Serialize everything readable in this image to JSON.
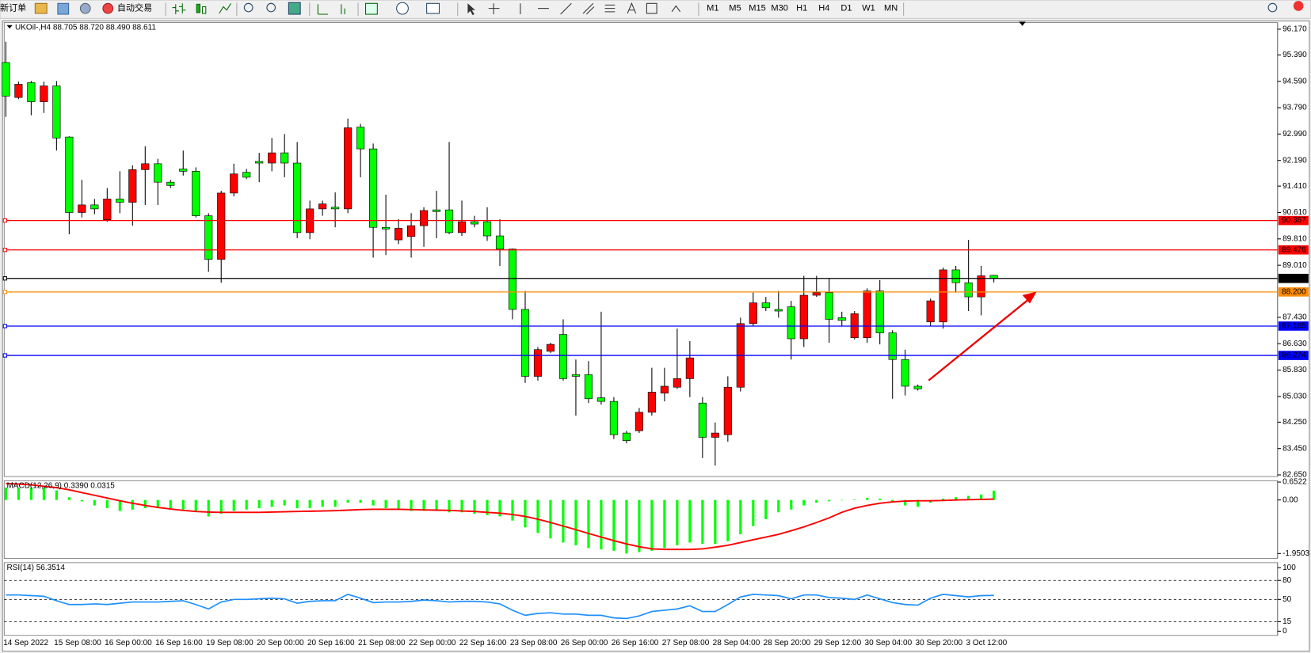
{
  "toolbar": {
    "new_order": "新订单",
    "auto_trading": "自动交易",
    "timeframes": [
      "M1",
      "M5",
      "M15",
      "M30",
      "H1",
      "H4",
      "D1",
      "W1",
      "MN"
    ]
  },
  "chart_data": [
    {
      "type": "candlestick",
      "title": "UKOil-,H4 88.705 88.720 88.490 88.611",
      "up_color": "#ff0000",
      "down_color": "#00ff00",
      "categories": [
        "14 Sep 2022",
        null,
        null,
        null,
        "15 Sep 08:00",
        null,
        null,
        null,
        "16 Sep 00:00",
        null,
        null,
        null,
        "16 Sep 16:00",
        null,
        null,
        null,
        "19 Sep 08:00",
        null,
        null,
        null,
        "20 Sep 00:00",
        null,
        null,
        null,
        "20 Sep 16:00",
        null,
        null,
        null,
        "21 Sep 08:00",
        null,
        null,
        null,
        "22 Sep 00:00",
        null,
        null,
        null,
        "22 Sep 16:00",
        null,
        null,
        null,
        "23 Sep 08:00",
        null,
        null,
        null,
        "26 Sep 00:00",
        null,
        null,
        null,
        "26 Sep 16:00",
        null,
        null,
        null,
        "27 Sep 08:00",
        null,
        null,
        null,
        "28 Sep 04:00",
        null,
        null,
        null,
        "28 Sep 20:00",
        null,
        null,
        null,
        "29 Sep 12:00",
        null,
        null,
        null,
        "30 Sep 04:00",
        null,
        null,
        null,
        "30 Sep 20:00",
        null,
        null,
        null,
        "3 Oct 12:00",
        null,
        null
      ],
      "open": [
        95.16,
        94.1,
        94.55,
        93.97,
        94.45,
        92.9,
        90.61,
        90.84,
        90.39,
        91.02,
        90.92,
        91.91,
        92.09,
        91.53,
        91.93,
        91.86,
        90.51,
        89.19,
        91.2,
        91.83,
        92.16,
        92.11,
        92.42,
        92.11,
        90.0,
        90.72,
        90.77,
        90.72,
        93.2,
        92.54,
        90.16,
        89.78,
        89.88,
        90.21,
        90.69,
        90.69,
        90.0,
        90.33,
        90.33,
        89.9,
        89.5,
        87.67,
        85.64,
        86.4,
        86.91,
        85.69,
        85.69,
        84.99,
        84.88,
        83.92,
        83.99,
        84.55,
        85.13,
        85.31,
        85.57,
        84.83,
        83.79,
        83.87,
        85.31,
        87.24,
        87.87,
        87.67,
        87.75,
        86.78,
        88.1,
        88.18,
        87.42,
        86.81,
        86.81,
        88.23,
        86.96,
        86.15,
        85.34,
        87.29,
        87.29,
        88.87,
        88.48,
        88.05,
        88.705
      ],
      "high": [
        95.79,
        94.58,
        94.6,
        94.58,
        94.6,
        92.92,
        91.6,
        91.02,
        91.35,
        91.86,
        92.04,
        92.62,
        92.24,
        91.6,
        92.49,
        91.98,
        90.59,
        91.27,
        92.09,
        91.93,
        92.42,
        92.87,
        92.99,
        92.75,
        90.97,
        90.97,
        91.22,
        93.46,
        93.3,
        92.7,
        91.15,
        90.41,
        90.59,
        90.77,
        91.27,
        92.75,
        90.97,
        90.51,
        90.77,
        90.41,
        89.52,
        88.23,
        86.53,
        86.66,
        87.37,
        86.15,
        86.1,
        87.6,
        85.01,
        83.99,
        84.68,
        85.9,
        85.9,
        87.09,
        86.71,
        85.01,
        84.24,
        85.64,
        87.42,
        88.18,
        88.05,
        88.23,
        87.93,
        88.69,
        88.69,
        88.61,
        87.6,
        87.62,
        88.31,
        88.56,
        87.04,
        86.45,
        85.39,
        88.0,
        88.94,
        88.99,
        89.78,
        88.99,
        88.72
      ],
      "low": [
        93.51,
        94.05,
        93.56,
        93.63,
        92.49,
        89.95,
        90.46,
        90.56,
        90.33,
        90.59,
        90.21,
        90.84,
        90.84,
        91.35,
        91.73,
        90.46,
        88.81,
        88.48,
        91.1,
        91.63,
        91.53,
        91.86,
        91.68,
        89.83,
        89.8,
        90.51,
        90.16,
        90.59,
        91.68,
        89.24,
        89.32,
        89.65,
        89.24,
        89.57,
        89.83,
        89.95,
        89.9,
        90.16,
        89.75,
        88.99,
        87.37,
        85.44,
        85.51,
        86.35,
        85.51,
        84.45,
        84.83,
        84.78,
        83.74,
        83.61,
        83.92,
        84.45,
        84.88,
        85.26,
        85.01,
        83.16,
        82.93,
        83.66,
        85.18,
        87.16,
        87.62,
        87.42,
        86.15,
        86.53,
        88.05,
        86.66,
        87.16,
        86.76,
        86.66,
        86.61,
        84.96,
        85.06,
        85.21,
        87.16,
        87.09,
        88.18,
        87.62,
        87.49,
        88.49
      ],
      "close": [
        94.14,
        94.5,
        93.97,
        94.45,
        92.87,
        90.61,
        90.84,
        90.72,
        91.02,
        90.92,
        91.91,
        92.09,
        91.53,
        91.43,
        91.86,
        90.51,
        89.19,
        91.2,
        91.78,
        91.68,
        92.11,
        92.42,
        92.11,
        90.0,
        90.72,
        90.87,
        90.72,
        93.18,
        92.54,
        90.16,
        90.11,
        90.13,
        90.21,
        90.67,
        90.64,
        90.0,
        90.33,
        90.26,
        89.9,
        89.5,
        87.67,
        85.64,
        86.45,
        86.61,
        85.57,
        85.64,
        84.96,
        84.88,
        83.87,
        83.69,
        84.55,
        85.16,
        85.34,
        85.57,
        86.2,
        83.79,
        83.92,
        85.31,
        87.24,
        87.87,
        87.72,
        87.62,
        86.78,
        88.1,
        88.18,
        87.37,
        87.34,
        87.54,
        88.23,
        86.96,
        86.15,
        85.34,
        85.26,
        87.93,
        88.87,
        88.48,
        88.05,
        88.69,
        88.611
      ],
      "ylim": [
        82.6,
        96.37
      ],
      "yticks": [
        {
          "value": 96.17,
          "label": "96.170"
        },
        {
          "value": 95.39,
          "label": "95.390"
        },
        {
          "value": 94.59,
          "label": "94.590"
        },
        {
          "value": 93.79,
          "label": "93.790"
        },
        {
          "value": 92.99,
          "label": "92.990"
        },
        {
          "value": 92.19,
          "label": "92.190"
        },
        {
          "value": 91.41,
          "label": "91.410"
        },
        {
          "value": 90.61,
          "label": "90.610"
        },
        {
          "value": 89.81,
          "label": "89.810"
        },
        {
          "value": 89.01,
          "label": "89.010"
        },
        {
          "value": 87.43,
          "label": "87.430"
        },
        {
          "value": 86.63,
          "label": "86.630"
        },
        {
          "value": 85.83,
          "label": "85.830"
        },
        {
          "value": 85.03,
          "label": "85.030"
        },
        {
          "value": 84.25,
          "label": "84.250"
        },
        {
          "value": 83.45,
          "label": "83.450"
        },
        {
          "value": 82.65,
          "label": "82.650"
        }
      ],
      "levels": [
        {
          "value": 90.367,
          "color": "#ff0000"
        },
        {
          "value": 89.476,
          "color": "#ff0000"
        },
        {
          "value": 88.611,
          "color": "#000000"
        },
        {
          "value": 88.2,
          "label": "88.200",
          "color": "#ff8c00"
        },
        {
          "value": 87.165,
          "color": "#0000ff"
        },
        {
          "value": 86.274,
          "color": "#0000ff"
        }
      ]
    },
    {
      "type": "macd",
      "title": "MACD(12,26,9) 0.3390 0.0315",
      "series": [
        {
          "type": "bar",
          "color": "#00ff00",
          "values": [
            0.45,
            0.45,
            0.45,
            0.45,
            0.35,
            0.1,
            -0.05,
            -0.2,
            -0.3,
            -0.4,
            -0.35,
            -0.3,
            -0.3,
            -0.3,
            -0.35,
            -0.4,
            -0.6,
            -0.5,
            -0.4,
            -0.35,
            -0.3,
            -0.25,
            -0.2,
            -0.3,
            -0.3,
            -0.25,
            -0.25,
            -0.1,
            -0.1,
            -0.2,
            -0.3,
            -0.35,
            -0.4,
            -0.4,
            -0.4,
            -0.45,
            -0.45,
            -0.5,
            -0.55,
            -0.6,
            -0.75,
            -1.0,
            -1.2,
            -1.4,
            -1.55,
            -1.65,
            -1.75,
            -1.8,
            -1.85,
            -1.95,
            -1.9,
            -1.85,
            -1.75,
            -1.65,
            -1.55,
            -1.6,
            -1.6,
            -1.5,
            -1.25,
            -0.95,
            -0.7,
            -0.45,
            -0.35,
            -0.2,
            -0.1,
            -0.05,
            0.0,
            0.02,
            0.08,
            0.05,
            -0.05,
            -0.2,
            -0.25,
            -0.1,
            0.05,
            0.1,
            0.15,
            0.2,
            0.339
          ]
        },
        {
          "type": "line",
          "color": "#ff0000",
          "values": [
            0.6,
            0.58,
            0.55,
            0.5,
            0.45,
            0.37,
            0.27,
            0.17,
            0.07,
            -0.03,
            -0.12,
            -0.2,
            -0.27,
            -0.33,
            -0.38,
            -0.42,
            -0.44,
            -0.45,
            -0.45,
            -0.45,
            -0.45,
            -0.44,
            -0.43,
            -0.42,
            -0.41,
            -0.4,
            -0.39,
            -0.37,
            -0.35,
            -0.34,
            -0.34,
            -0.34,
            -0.35,
            -0.36,
            -0.37,
            -0.38,
            -0.4,
            -0.42,
            -0.45,
            -0.48,
            -0.53,
            -0.6,
            -0.7,
            -0.82,
            -0.95,
            -1.08,
            -1.22,
            -1.35,
            -1.48,
            -1.6,
            -1.7,
            -1.78,
            -1.8,
            -1.8,
            -1.8,
            -1.78,
            -1.72,
            -1.65,
            -1.55,
            -1.45,
            -1.35,
            -1.25,
            -1.12,
            -0.98,
            -0.82,
            -0.65,
            -0.45,
            -0.3,
            -0.2,
            -0.12,
            -0.07,
            -0.04,
            -0.03,
            -0.03,
            -0.02,
            0.0,
            0.01,
            0.02,
            0.0315
          ]
        }
      ],
      "ylim": [
        -2.13,
        0.7
      ],
      "yticks": [
        0.6522,
        {
          "value": 0,
          "label": "0.00"
        },
        -1.9503
      ]
    },
    {
      "type": "line",
      "title": "RSI(14) 56.3514",
      "color": "#1e8fff",
      "grid": "dashed",
      "values": [
        57,
        57,
        56,
        55,
        48,
        42,
        42,
        43,
        42,
        44,
        46,
        46,
        46,
        47,
        48,
        42,
        35,
        46,
        50,
        50,
        51,
        52,
        51,
        44,
        47,
        48,
        48,
        58,
        52,
        45,
        46,
        46,
        47,
        49,
        48,
        46,
        47,
        47,
        46,
        43,
        33,
        25,
        28,
        29,
        27,
        27,
        25,
        25,
        21,
        20,
        24,
        31,
        33,
        35,
        40,
        31,
        31,
        42,
        54,
        58,
        57,
        56,
        51,
        57,
        57,
        53,
        52,
        50,
        57,
        51,
        45,
        42,
        41,
        52,
        58,
        56,
        54,
        56,
        56.3514
      ],
      "ylim": [
        -6.6,
        107.9
      ],
      "yticks": [
        100,
        80,
        50,
        15,
        0
      ]
    }
  ]
}
